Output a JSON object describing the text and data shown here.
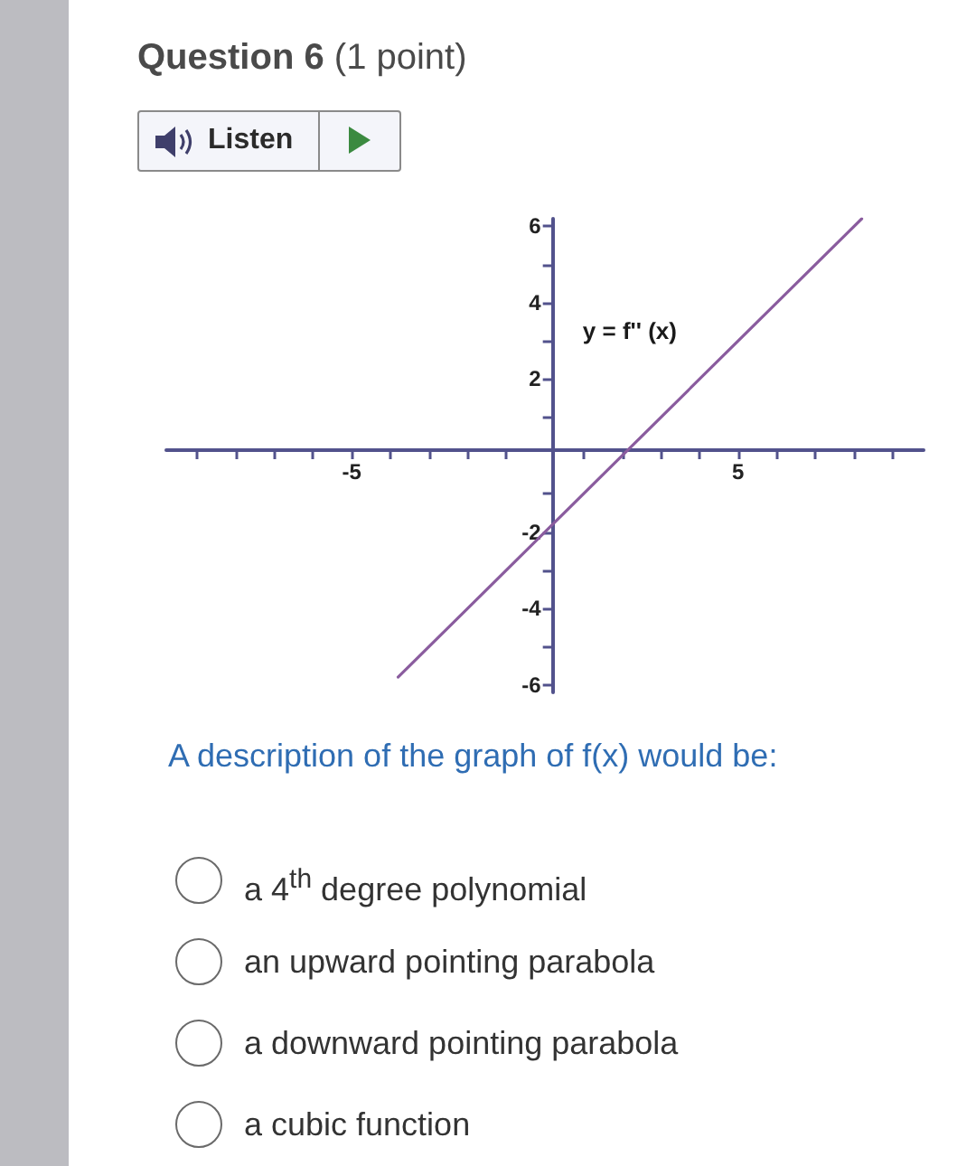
{
  "chart_data": {
    "type": "line",
    "title": "Question 6 (1 point)",
    "series": [
      {
        "name": "y = f'' (x)",
        "x": [
          -3.8,
          8.2
        ],
        "values": [
          -5.8,
          6.2
        ],
        "color": "#8a5c9e"
      }
    ],
    "xlim": [
      -9.8,
      9.8
    ],
    "xticks": [
      {
        "value": -9,
        "label": null
      },
      {
        "value": -8,
        "label": null
      },
      {
        "value": -7,
        "label": null
      },
      {
        "value": -6,
        "label": null
      },
      -5,
      {
        "value": -4,
        "label": null
      },
      {
        "value": -3,
        "label": null
      },
      {
        "value": -2,
        "label": null
      },
      {
        "value": -1,
        "label": null
      },
      {
        "value": 1,
        "label": null
      },
      {
        "value": 2,
        "label": null
      },
      {
        "value": 3,
        "label": null
      },
      {
        "value": 4,
        "label": null
      },
      5,
      {
        "value": 6,
        "label": null
      },
      {
        "value": 7,
        "label": null
      },
      {
        "value": 8,
        "label": null
      },
      {
        "value": 9,
        "label": null
      }
    ],
    "ylim": [
      -6.2,
      6.2
    ],
    "yticks": [
      -6,
      {
        "value": -5,
        "label": null
      },
      -4,
      {
        "value": -3,
        "label": null
      },
      -2,
      {
        "value": -1,
        "label": null
      },
      {
        "value": 1,
        "label": null
      },
      2,
      {
        "value": 3,
        "label": null
      },
      4,
      {
        "value": 5,
        "label": null
      },
      6
    ],
    "annotations": [
      "Listen",
      "A description of the graph of f(x) would be:",
      "a 4$^{th}$ degree polynomial",
      "an upward pointing parabola",
      "a downward pointing parabola",
      "a cubic function"
    ]
  }
}
